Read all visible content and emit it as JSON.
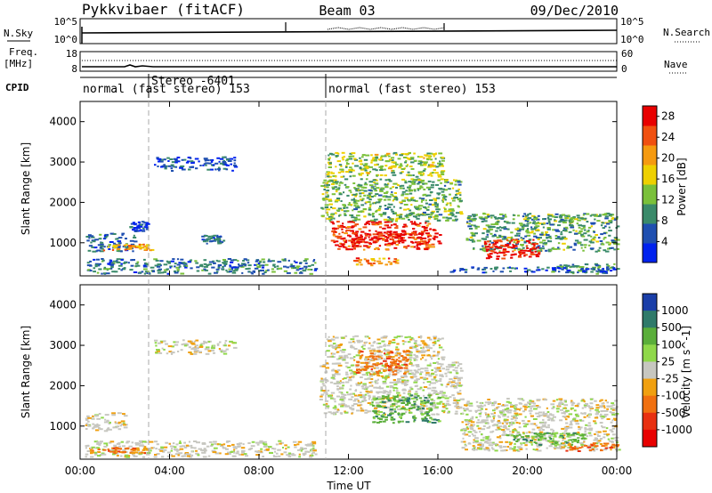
{
  "header": {
    "title": "Pykkvibaer (fitACF)",
    "beam": "Beam 03",
    "date": "09/Dec/2010"
  },
  "nsky_panel": {
    "left_label": "N.Sky",
    "left_ticks": [
      "10^5",
      "10^0"
    ],
    "right_label": "N.Search",
    "right_ticks": [
      "10^5",
      "10^0"
    ]
  },
  "freq_panel": {
    "left_label_1": "Freq.",
    "left_label_2": "[MHz]",
    "left_ticks": [
      "18",
      "8"
    ],
    "right_label": "Nave",
    "right_ticks": [
      "60",
      "0"
    ]
  },
  "cpid": {
    "label": "CPID",
    "segments": [
      "normal (fast stereo) 153",
      "Stereo -6401",
      "normal (fast stereo) 153"
    ]
  },
  "chart_data": [
    {
      "type": "heatmap",
      "name": "power",
      "xlabel": "",
      "ylabel": "Slant Range [km]",
      "x_ticks": [
        "00:00",
        "04:00",
        "08:00",
        "12:00",
        "16:00",
        "20:00",
        "00:00"
      ],
      "xlim_hours": [
        0,
        24
      ],
      "ylim_km": [
        180,
        4500
      ],
      "y_ticks": [
        1000,
        2000,
        3000,
        4000
      ],
      "colorbar": {
        "label": "Power [dB]",
        "ticks": [
          4,
          8,
          12,
          16,
          20,
          24,
          28
        ],
        "range": [
          0,
          30
        ],
        "colors": [
          "#0022ee",
          "#1f4fb0",
          "#3a8a6a",
          "#7ac03a",
          "#eed000",
          "#f59a10",
          "#f05010",
          "#e80000"
        ]
      },
      "regions": [
        {
          "t": [
            0.3,
            10.5
          ],
          "r": [
            250,
            620
          ],
          "level": 8
        },
        {
          "t": [
            0.2,
            2.4
          ],
          "r": [
            800,
            1250
          ],
          "level": 7
        },
        {
          "t": [
            1.0,
            3.2
          ],
          "r": [
            820,
            980
          ],
          "level": 20
        },
        {
          "t": [
            5.4,
            6.4
          ],
          "r": [
            1000,
            1200
          ],
          "level": 6
        },
        {
          "t": [
            3.3,
            6.9
          ],
          "r": [
            2800,
            3150
          ],
          "level": 5
        },
        {
          "t": [
            2.2,
            3.0
          ],
          "r": [
            1300,
            1550
          ],
          "level": 5
        },
        {
          "t": [
            10.7,
            17.0
          ],
          "r": [
            1550,
            2600
          ],
          "level": 12
        },
        {
          "t": [
            11.0,
            16.2
          ],
          "r": [
            2650,
            3250
          ],
          "level": 14
        },
        {
          "t": [
            11.2,
            15.8
          ],
          "r": [
            850,
            1550
          ],
          "level": 26
        },
        {
          "t": [
            12.1,
            16.1
          ],
          "r": [
            1000,
            1300
          ],
          "level": 29
        },
        {
          "t": [
            12.0,
            14.2
          ],
          "r": [
            450,
            640
          ],
          "level": 22
        },
        {
          "t": [
            17.2,
            24.0
          ],
          "r": [
            800,
            1750
          ],
          "level": 11
        },
        {
          "t": [
            18.0,
            20.5
          ],
          "r": [
            600,
            1100
          ],
          "level": 28
        },
        {
          "t": [
            21.0,
            24.0
          ],
          "r": [
            250,
            500
          ],
          "level": 10
        },
        {
          "t": [
            16.5,
            24.0
          ],
          "r": [
            280,
            420
          ],
          "level": 5
        }
      ]
    },
    {
      "type": "heatmap",
      "name": "velocity",
      "xlabel": "Time UT",
      "ylabel": "Slant Range [km]",
      "x_ticks": [
        "00:00",
        "04:00",
        "08:00",
        "12:00",
        "16:00",
        "20:00",
        "00:00"
      ],
      "xlim_hours": [
        0,
        24
      ],
      "ylim_km": [
        180,
        4500
      ],
      "y_ticks": [
        1000,
        2000,
        3000,
        4000
      ],
      "colorbar": {
        "label": "Velocity [m s^-1]",
        "ticks": [
          "1000",
          "500",
          "100",
          "25",
          "-25",
          "-100",
          "-500",
          "-1000"
        ],
        "colors": [
          "#1a3ea8",
          "#2f7a6a",
          "#5aae3a",
          "#8fd84a",
          "#c7c7c0",
          "#f0a010",
          "#f07010",
          "#e83010",
          "#e80000"
        ]
      },
      "regions": [
        {
          "t": [
            0.2,
            10.5
          ],
          "r": [
            250,
            650
          ],
          "level": 4
        },
        {
          "t": [
            0.4,
            3.0
          ],
          "r": [
            350,
            500
          ],
          "level": 6
        },
        {
          "t": [
            0.2,
            2.0
          ],
          "r": [
            900,
            1350
          ],
          "level": 4
        },
        {
          "t": [
            3.3,
            6.9
          ],
          "r": [
            2800,
            3150
          ],
          "level": 4
        },
        {
          "t": [
            10.7,
            17.0
          ],
          "r": [
            1300,
            2600
          ],
          "level": 4
        },
        {
          "t": [
            11.0,
            16.2
          ],
          "r": [
            2650,
            3250
          ],
          "level": 4
        },
        {
          "t": [
            12.3,
            14.6
          ],
          "r": [
            2300,
            2900
          ],
          "level": 6
        },
        {
          "t": [
            13.0,
            16.0
          ],
          "r": [
            1100,
            1800
          ],
          "level": 2
        },
        {
          "t": [
            17.0,
            24.0
          ],
          "r": [
            400,
            1700
          ],
          "level": 4
        },
        {
          "t": [
            19.0,
            22.5
          ],
          "r": [
            550,
            850
          ],
          "level": 2
        },
        {
          "t": [
            21.5,
            24.0
          ],
          "r": [
            400,
            600
          ],
          "level": 6
        }
      ]
    }
  ],
  "axis": {
    "time_label": "Time UT"
  }
}
